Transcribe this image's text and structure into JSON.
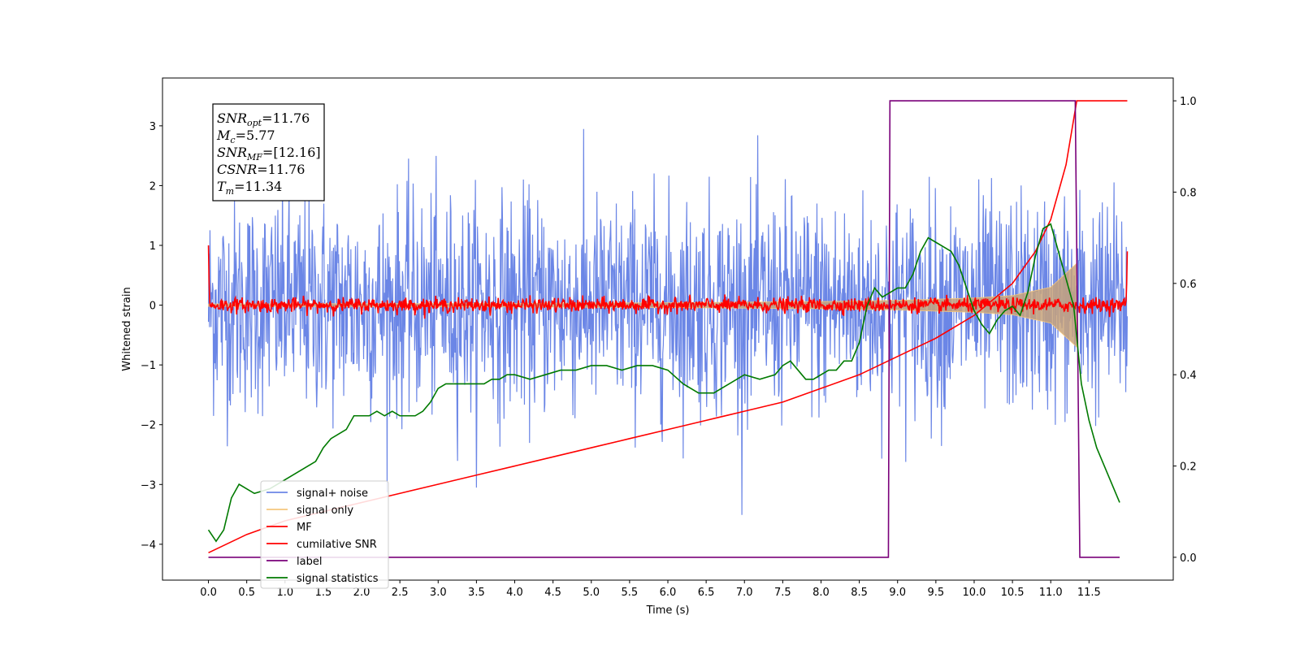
{
  "chart_data": {
    "type": "line",
    "xlabel": "Time (s)",
    "ylabel": "Whitened strain",
    "xlim": [
      -0.6,
      12.6
    ],
    "ylim": [
      -4.6,
      3.8
    ],
    "y2lim": [
      -0.05,
      1.05
    ],
    "xticks": [
      0.0,
      0.5,
      1.0,
      1.5,
      2.0,
      2.5,
      3.0,
      3.5,
      4.0,
      4.5,
      5.0,
      5.5,
      6.0,
      6.5,
      7.0,
      7.5,
      8.0,
      8.5,
      9.0,
      9.5,
      10.0,
      10.5,
      11.0,
      11.5
    ],
    "xtick_labels": [
      "0.0",
      "0.5",
      "1.0",
      "1.5",
      "2.0",
      "2.5",
      "3.0",
      "3.5",
      "4.0",
      "4.5",
      "5.0",
      "5.5",
      "6.0",
      "6.5",
      "7.0",
      "7.5",
      "8.0",
      "8.5",
      "9.0",
      "9.5",
      "10.0",
      "10.5",
      "11.0",
      "11.5"
    ],
    "yticks": [
      -4,
      -3,
      -2,
      -1,
      0,
      1,
      2,
      3
    ],
    "ytick_labels": [
      "−4",
      "−3",
      "−2",
      "−1",
      "0",
      "1",
      "2",
      "3"
    ],
    "y2ticks": [
      0.0,
      0.2,
      0.4,
      0.6,
      0.8,
      1.0
    ],
    "y2tick_labels": [
      "0.0",
      "0.2",
      "0.4",
      "0.6",
      "0.8",
      "1.0"
    ],
    "legend_position": "lower-left",
    "grid": false,
    "series": [
      {
        "name": "signal+ noise",
        "color": "#6b86e6",
        "axis": "left",
        "style": "noise",
        "t_range": [
          0.0,
          12.0
        ],
        "noise_scale": 0.9,
        "points": 1800
      },
      {
        "name": "signal only",
        "color": "#f5c77e",
        "axis": "left",
        "style": "chirp",
        "t_range": [
          0.0,
          11.34
        ],
        "envelope": [
          [
            0.0,
            0.02
          ],
          [
            4.0,
            0.03
          ],
          [
            6.0,
            0.04
          ],
          [
            8.0,
            0.06
          ],
          [
            9.0,
            0.08
          ],
          [
            10.0,
            0.12
          ],
          [
            10.5,
            0.16
          ],
          [
            11.0,
            0.3
          ],
          [
            11.34,
            0.7
          ]
        ]
      },
      {
        "name": "MF",
        "color": "#ff0000",
        "axis": "left",
        "style": "noise",
        "t_range": [
          0.0,
          12.0
        ],
        "noise_scale": 0.06,
        "points": 1500,
        "edge_values": [
          [
            0.0,
            1.0
          ],
          [
            12.0,
            0.9
          ]
        ]
      },
      {
        "name": "cumilative SNR",
        "color": "#ff0000",
        "axis": "right",
        "x": [
          0.0,
          0.5,
          1.0,
          1.5,
          2.0,
          2.5,
          3.0,
          3.5,
          4.0,
          4.5,
          5.0,
          5.5,
          6.0,
          6.5,
          7.0,
          7.5,
          8.0,
          8.5,
          9.0,
          9.5,
          10.0,
          10.5,
          10.8,
          11.0,
          11.2,
          11.34,
          11.5,
          12.0
        ],
        "y": [
          0.01,
          0.05,
          0.08,
          0.1,
          0.12,
          0.14,
          0.16,
          0.18,
          0.2,
          0.22,
          0.24,
          0.26,
          0.28,
          0.3,
          0.32,
          0.34,
          0.37,
          0.4,
          0.44,
          0.48,
          0.53,
          0.6,
          0.67,
          0.74,
          0.86,
          1.0,
          1.0,
          1.0
        ]
      },
      {
        "name": "label",
        "color": "#7a007a",
        "axis": "right",
        "x": [
          0.0,
          8.88,
          8.9,
          11.32,
          11.38,
          11.9
        ],
        "y": [
          0.0,
          0.0,
          1.0,
          1.0,
          0.0,
          0.0
        ]
      },
      {
        "name": "signal statistics",
        "color": "#007a00",
        "axis": "right",
        "x": [
          0.0,
          0.1,
          0.2,
          0.3,
          0.4,
          0.5,
          0.6,
          0.8,
          1.0,
          1.2,
          1.4,
          1.5,
          1.6,
          1.7,
          1.8,
          1.9,
          2.0,
          2.1,
          2.2,
          2.3,
          2.4,
          2.5,
          2.6,
          2.7,
          2.8,
          2.9,
          3.0,
          3.1,
          3.2,
          3.3,
          3.4,
          3.5,
          3.6,
          3.7,
          3.8,
          3.9,
          4.0,
          4.2,
          4.4,
          4.6,
          4.8,
          5.0,
          5.2,
          5.4,
          5.6,
          5.8,
          6.0,
          6.2,
          6.4,
          6.6,
          6.8,
          7.0,
          7.2,
          7.4,
          7.5,
          7.6,
          7.7,
          7.8,
          7.9,
          8.0,
          8.1,
          8.2,
          8.3,
          8.4,
          8.5,
          8.6,
          8.7,
          8.8,
          8.9,
          9.0,
          9.1,
          9.2,
          9.3,
          9.4,
          9.5,
          9.6,
          9.7,
          9.8,
          9.9,
          10.0,
          10.1,
          10.2,
          10.3,
          10.4,
          10.5,
          10.6,
          10.7,
          10.8,
          10.9,
          11.0,
          11.1,
          11.2,
          11.3,
          11.4,
          11.5,
          11.6,
          11.7,
          11.8,
          11.9
        ],
        "y": [
          0.06,
          0.035,
          0.06,
          0.13,
          0.16,
          0.15,
          0.14,
          0.15,
          0.17,
          0.19,
          0.21,
          0.24,
          0.26,
          0.27,
          0.28,
          0.31,
          0.31,
          0.31,
          0.32,
          0.31,
          0.32,
          0.31,
          0.31,
          0.31,
          0.32,
          0.34,
          0.37,
          0.38,
          0.38,
          0.38,
          0.38,
          0.38,
          0.38,
          0.39,
          0.39,
          0.4,
          0.4,
          0.39,
          0.4,
          0.41,
          0.41,
          0.42,
          0.42,
          0.41,
          0.42,
          0.42,
          0.41,
          0.38,
          0.36,
          0.36,
          0.38,
          0.4,
          0.39,
          0.4,
          0.42,
          0.43,
          0.41,
          0.39,
          0.39,
          0.4,
          0.41,
          0.41,
          0.43,
          0.43,
          0.47,
          0.55,
          0.59,
          0.57,
          0.58,
          0.59,
          0.59,
          0.62,
          0.67,
          0.7,
          0.69,
          0.68,
          0.67,
          0.64,
          0.59,
          0.54,
          0.51,
          0.49,
          0.52,
          0.54,
          0.55,
          0.53,
          0.58,
          0.66,
          0.72,
          0.73,
          0.67,
          0.61,
          0.55,
          0.38,
          0.3,
          0.24,
          0.2,
          0.16,
          0.12
        ]
      }
    ],
    "annotation": {
      "lines": [
        {
          "main": "SNR",
          "sub": "opt",
          "rest": "=11.76"
        },
        {
          "main": "M",
          "sub": "c",
          "rest": "=5.77"
        },
        {
          "main": "SNR",
          "sub": "MF",
          "rest": "=[12.16]"
        },
        {
          "main": "CSNR",
          "sub": "",
          "rest": "=11.76"
        },
        {
          "main": "T",
          "sub": "m",
          "rest": "=11.34"
        }
      ]
    }
  }
}
